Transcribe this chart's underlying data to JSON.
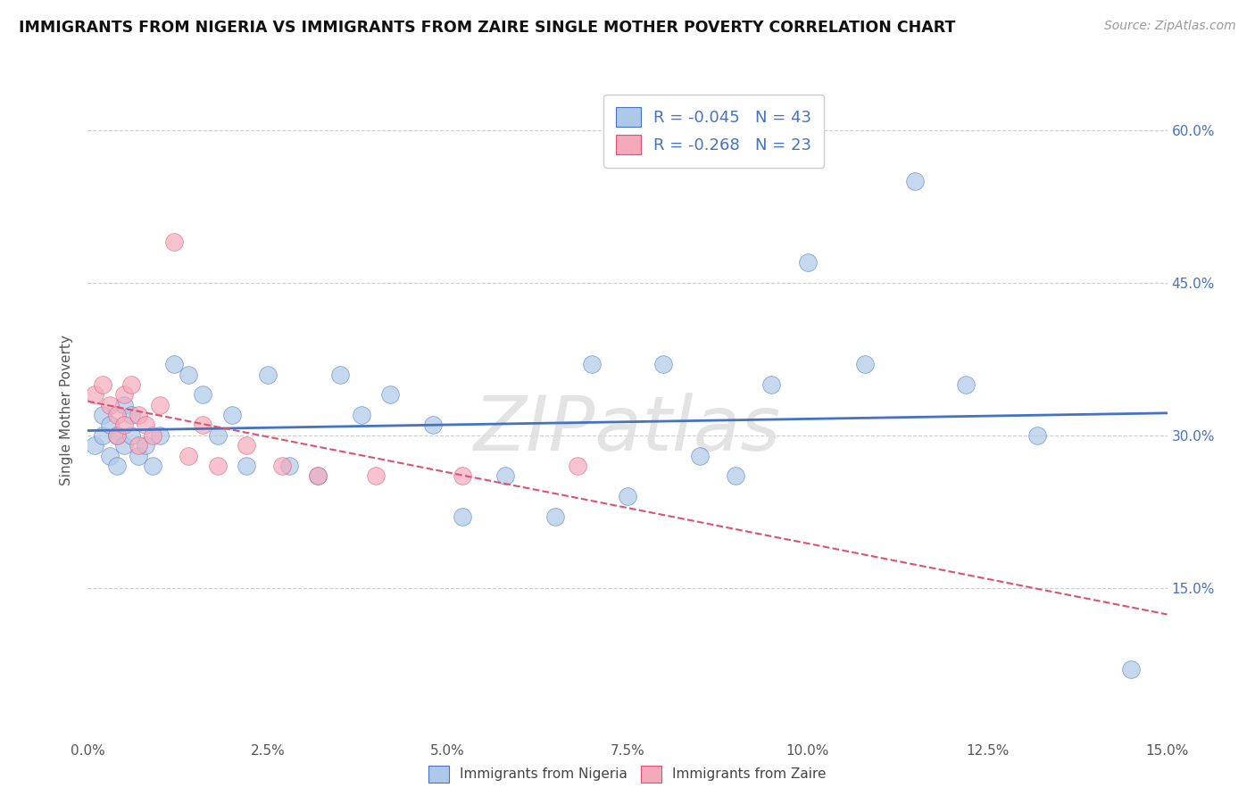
{
  "title": "IMMIGRANTS FROM NIGERIA VS IMMIGRANTS FROM ZAIRE SINGLE MOTHER POVERTY CORRELATION CHART",
  "source": "Source: ZipAtlas.com",
  "ylabel": "Single Mother Poverty",
  "legend_label1": "Immigrants from Nigeria",
  "legend_label2": "Immigrants from Zaire",
  "r1": "-0.045",
  "n1": "43",
  "r2": "-0.268",
  "n2": "23",
  "xmin": 0.0,
  "xmax": 0.15,
  "ymin": 0.0,
  "ymax": 0.65,
  "color1": "#adc8e8",
  "color2": "#f4aabb",
  "line_color1": "#4472c4",
  "line_color2": "#e05070",
  "nigeria_x": [
    0.001,
    0.002,
    0.002,
    0.003,
    0.003,
    0.004,
    0.004,
    0.005,
    0.005,
    0.006,
    0.006,
    0.007,
    0.008,
    0.009,
    0.01,
    0.012,
    0.014,
    0.016,
    0.018,
    0.02,
    0.022,
    0.025,
    0.028,
    0.032,
    0.035,
    0.038,
    0.042,
    0.048,
    0.052,
    0.058,
    0.065,
    0.07,
    0.075,
    0.08,
    0.085,
    0.09,
    0.095,
    0.1,
    0.108,
    0.115,
    0.122,
    0.132,
    0.145
  ],
  "nigeria_y": [
    0.29,
    0.3,
    0.32,
    0.28,
    0.31,
    0.27,
    0.3,
    0.33,
    0.29,
    0.32,
    0.3,
    0.28,
    0.29,
    0.27,
    0.3,
    0.37,
    0.36,
    0.34,
    0.3,
    0.32,
    0.27,
    0.36,
    0.27,
    0.26,
    0.36,
    0.32,
    0.34,
    0.31,
    0.22,
    0.26,
    0.22,
    0.37,
    0.24,
    0.37,
    0.28,
    0.26,
    0.35,
    0.47,
    0.37,
    0.55,
    0.35,
    0.3,
    0.07
  ],
  "zaire_x": [
    0.001,
    0.002,
    0.003,
    0.004,
    0.004,
    0.005,
    0.005,
    0.006,
    0.007,
    0.007,
    0.008,
    0.009,
    0.01,
    0.012,
    0.014,
    0.016,
    0.018,
    0.022,
    0.027,
    0.032,
    0.04,
    0.052,
    0.068
  ],
  "zaire_y": [
    0.34,
    0.35,
    0.33,
    0.32,
    0.3,
    0.34,
    0.31,
    0.35,
    0.32,
    0.29,
    0.31,
    0.3,
    0.33,
    0.49,
    0.28,
    0.31,
    0.27,
    0.29,
    0.27,
    0.26,
    0.26,
    0.26,
    0.27
  ],
  "watermark": "ZIPatlas",
  "background_color": "#ffffff",
  "grid_color": "#cccccc",
  "yticks": [
    0.15,
    0.3,
    0.45,
    0.6
  ]
}
